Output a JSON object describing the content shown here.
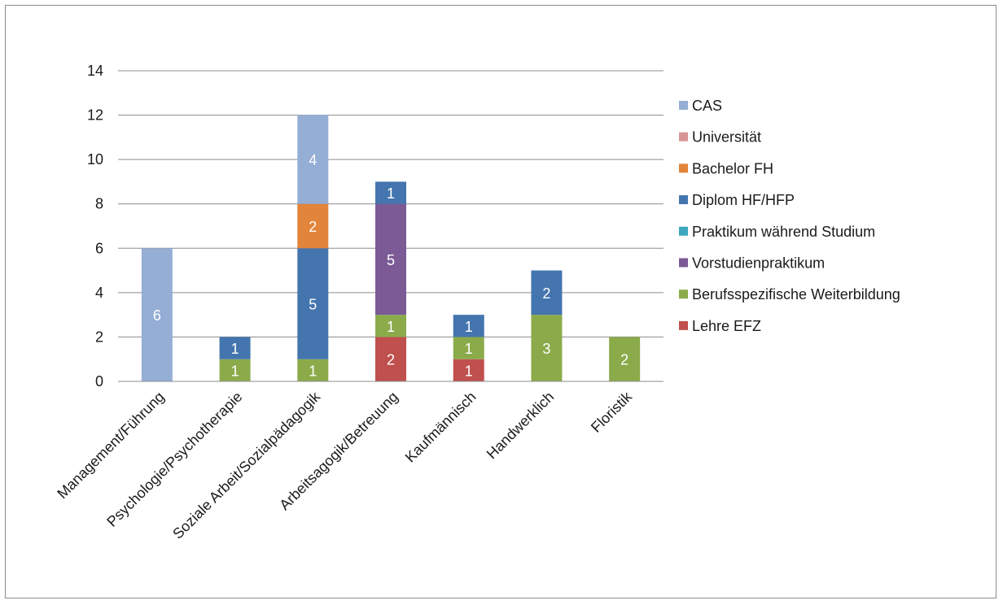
{
  "chart_data": {
    "type": "bar",
    "stacked": true,
    "categories": [
      "Management/Führung",
      "Psychologie/Psychotherapie",
      "Soziale Arbeit/Sozialpädagogik",
      "Arbeitsagogik/Betreuung",
      "Kaufmännisch",
      "Handwerklich",
      "Floristik"
    ],
    "ylim": [
      0,
      14
    ],
    "yticks": [
      0,
      2,
      4,
      6,
      8,
      10,
      12,
      14
    ],
    "grid": true,
    "legend_position": "right",
    "series": [
      {
        "name": "Lehre EFZ",
        "color": "#c0504d",
        "values": [
          0,
          0,
          0,
          2,
          1,
          0,
          0
        ]
      },
      {
        "name": "Berufsspezifische Weiterbildung",
        "color": "#8bab4b",
        "values": [
          0,
          1,
          1,
          1,
          1,
          3,
          2
        ]
      },
      {
        "name": "Vorstudienpraktikum",
        "color": "#7b5a96",
        "values": [
          0,
          0,
          0,
          5,
          0,
          0,
          0
        ]
      },
      {
        "name": "Praktikum während Studium",
        "color": "#3ea7bd",
        "values": [
          0,
          0,
          0,
          0,
          0,
          0,
          0
        ]
      },
      {
        "name": "Diplom HF/HFP",
        "color": "#4475ae",
        "values": [
          0,
          1,
          5,
          1,
          1,
          2,
          0
        ]
      },
      {
        "name": "Bachelor FH",
        "color": "#e2843a",
        "values": [
          0,
          0,
          2,
          0,
          0,
          0,
          0
        ]
      },
      {
        "name": "Universität",
        "color": "#d99594",
        "values": [
          0,
          0,
          0,
          0,
          0,
          0,
          0
        ]
      },
      {
        "name": "CAS",
        "color": "#95aed5",
        "values": [
          6,
          0,
          4,
          0,
          0,
          0,
          0
        ]
      }
    ]
  }
}
